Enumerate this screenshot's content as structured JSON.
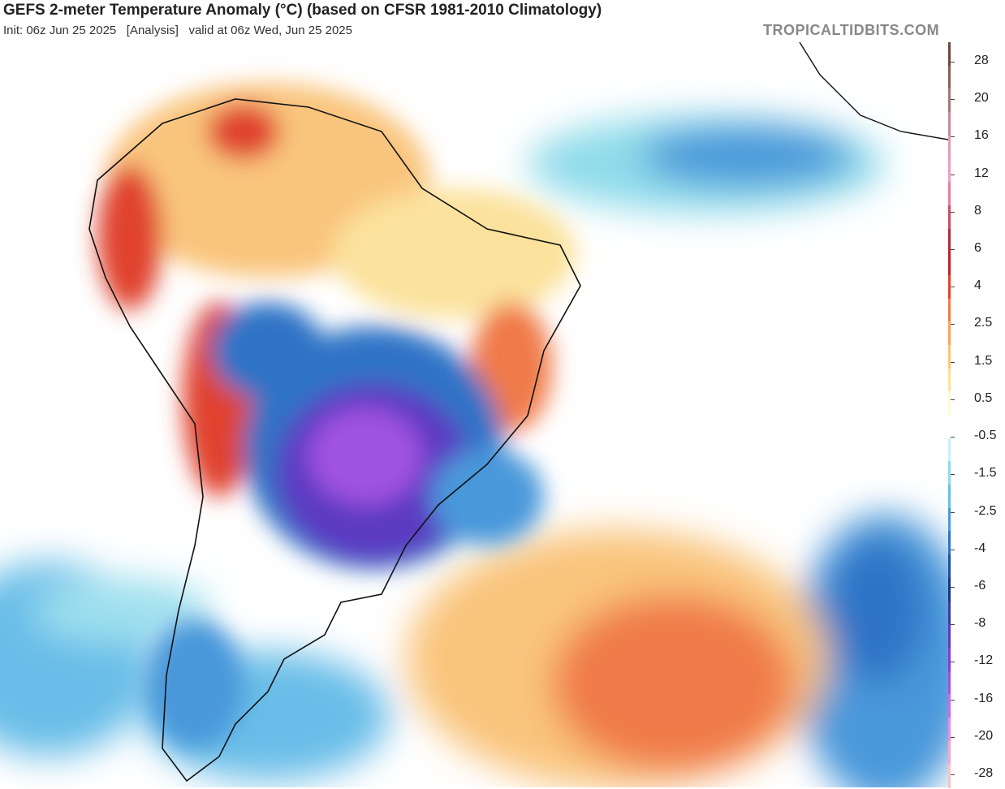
{
  "header": {
    "title": "GEFS 2-meter Temperature Anomaly (°C) (based on CFSR 1981-2010 Climatology)",
    "subtitle": "Init: 06z Jun 25 2025   [Analysis]   valid at 06z Wed, Jun 25 2025",
    "site": "TROPICALTIDBITS.COM"
  },
  "colorbar": {
    "labels": [
      "28",
      "20",
      "16",
      "12",
      "8",
      "6",
      "4",
      "2.5",
      "1.5",
      "0.5",
      "-0.5",
      "-1.5",
      "-2.5",
      "-4",
      "-6",
      "-8",
      "-12",
      "-16",
      "-20",
      "-28"
    ],
    "colors": [
      "#6b4a3a",
      "#8a5f55",
      "#a9767a",
      "#c48a9a",
      "#dd9cb6",
      "#ee9fc6",
      "#e47fa0",
      "#cc4d66",
      "#b42b3c",
      "#c0202a",
      "#e0432d",
      "#f07a48",
      "#f7a35f",
      "#f9c57d",
      "#fbe29c",
      "#fff8d6",
      "#ffffff",
      "#c6f0f5",
      "#8fdbea",
      "#69bde8",
      "#4a98da",
      "#2f73c6",
      "#1b4fa8",
      "#16368a",
      "#3b39a8",
      "#5c3bc2",
      "#7e40d6",
      "#a052e0",
      "#c46ee8",
      "#e38fec",
      "#f0aacd",
      "#f7c3c9"
    ]
  }
}
